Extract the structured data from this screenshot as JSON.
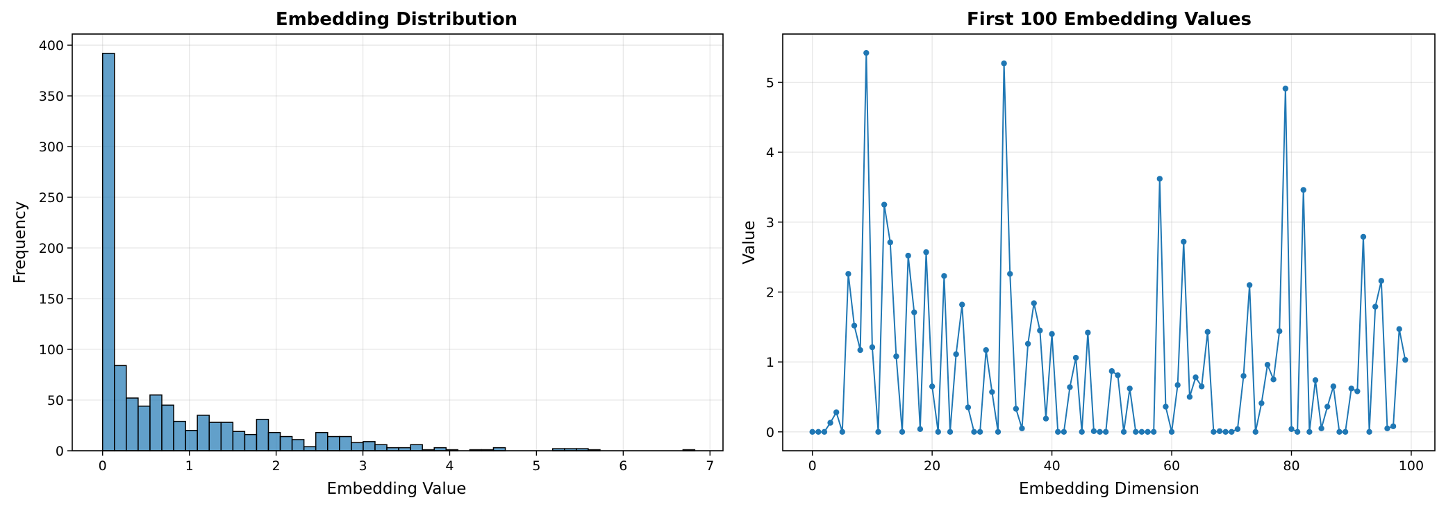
{
  "chart_data": [
    {
      "type": "bar",
      "title": "Embedding Distribution",
      "xlabel": "Embedding Value",
      "ylabel": "Frequency",
      "xlim": [
        -0.35,
        7.15
      ],
      "ylim": [
        0,
        411
      ],
      "xticks": [
        0,
        1,
        2,
        3,
        4,
        5,
        6,
        7
      ],
      "yticks": [
        0,
        50,
        100,
        150,
        200,
        250,
        300,
        350,
        400
      ],
      "grid": true,
      "bin_width": 0.1365,
      "bins_start": 0,
      "values": [
        392,
        84,
        52,
        44,
        55,
        45,
        29,
        20,
        35,
        28,
        28,
        19,
        16,
        31,
        18,
        14,
        11,
        4,
        18,
        14,
        14,
        8,
        9,
        6,
        3,
        3,
        6,
        1,
        3,
        1,
        0,
        1,
        1,
        3,
        0,
        0,
        0,
        0,
        2,
        2,
        2,
        1,
        0,
        0,
        0,
        0,
        0,
        0,
        0,
        1
      ],
      "color": "#1f77b4"
    },
    {
      "type": "line",
      "title": "First 100 Embedding Values",
      "xlabel": "Embedding Dimension",
      "ylabel": "Value",
      "xlim": [
        -4.95,
        103.95
      ],
      "ylim": [
        -0.27,
        5.69
      ],
      "xticks": [
        0,
        20,
        40,
        60,
        80,
        100
      ],
      "yticks": [
        0,
        1,
        2,
        3,
        4,
        5
      ],
      "grid": true,
      "marker": "circle",
      "color": "#1f77b4",
      "values": [
        0,
        0,
        0,
        0.13,
        0.28,
        0,
        2.26,
        1.52,
        1.17,
        5.42,
        1.21,
        0,
        3.25,
        2.71,
        1.08,
        0,
        2.52,
        1.71,
        0.04,
        2.57,
        0.65,
        0,
        2.23,
        0,
        1.11,
        1.82,
        0.35,
        0,
        0,
        1.17,
        0.57,
        0,
        5.27,
        2.26,
        0.33,
        0.05,
        1.26,
        1.84,
        1.45,
        0.19,
        1.4,
        0,
        0,
        0.64,
        1.06,
        0,
        1.42,
        0.01,
        0,
        0,
        0.87,
        0.81,
        0,
        0.62,
        0,
        0,
        0,
        0,
        3.62,
        0.36,
        0,
        0.67,
        2.72,
        0.5,
        0.78,
        0.65,
        1.43,
        0,
        0.01,
        0,
        0,
        0.04,
        0.8,
        2.1,
        0,
        0.41,
        0.96,
        0.75,
        1.44,
        4.91,
        0.04,
        0,
        3.46,
        0,
        0.74,
        0.05,
        0.36,
        0.65,
        0,
        0,
        0.62,
        0.58,
        2.79,
        0,
        1.79,
        2.16,
        0.05,
        0.08,
        1.47,
        1.03
      ]
    }
  ]
}
